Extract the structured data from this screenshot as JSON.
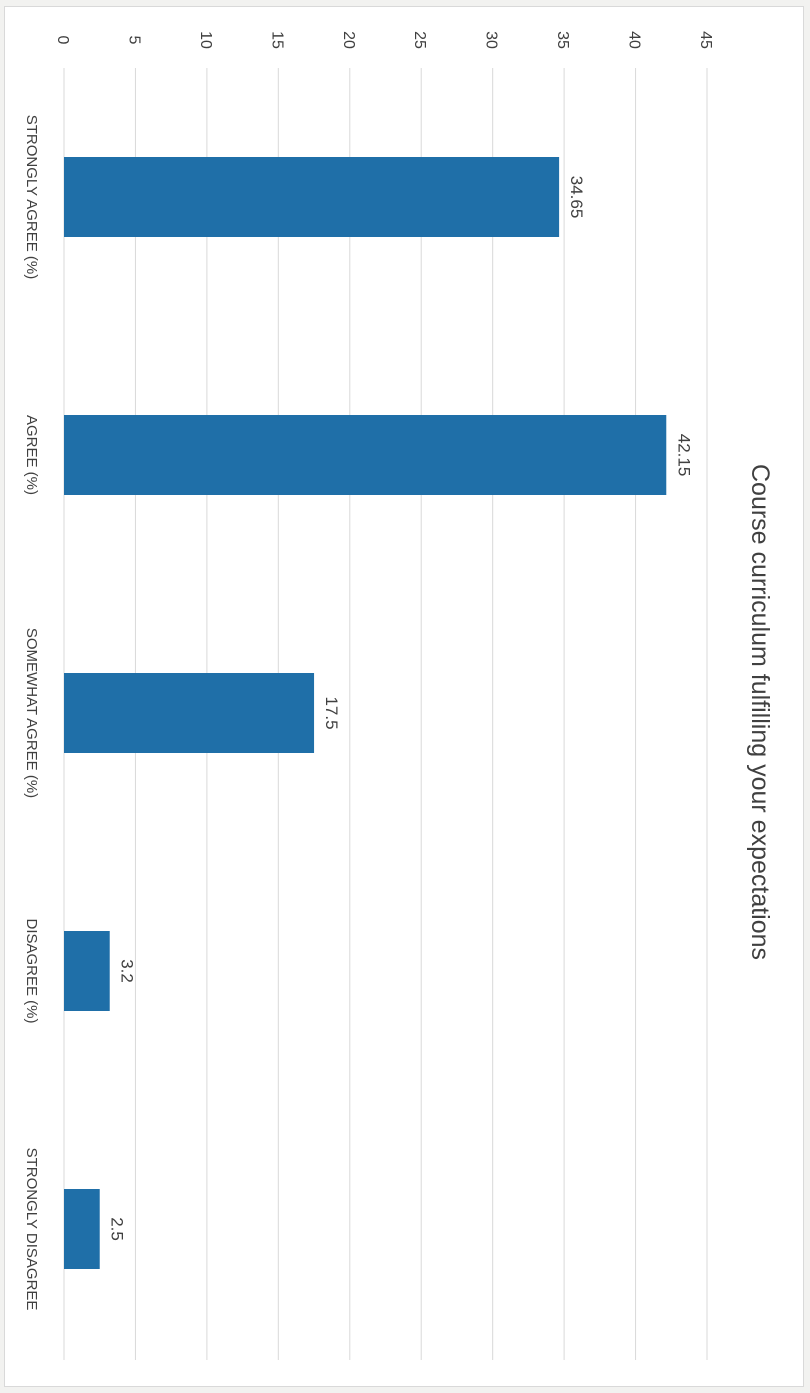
{
  "chart_data": {
    "type": "bar",
    "title": "Course curriculum fulfilling your expectations",
    "categories": [
      "STRONGLY AGREE (%)",
      "AGREE (%)",
      "SOMEWHAT AGREE (%)",
      "DISAGREE (%)",
      "STRONGLY DISAGREE"
    ],
    "values": [
      34.65,
      42.15,
      17.5,
      3.2,
      2.5
    ],
    "value_labels": [
      "34.65",
      "42.15",
      "17.5",
      "3.2",
      "2.5"
    ],
    "yticks": [
      0,
      5,
      10,
      15,
      20,
      25,
      30,
      35,
      40,
      45
    ],
    "ylim": [
      0,
      45
    ],
    "xlabel": "",
    "ylabel": "",
    "grid": true,
    "orientation": "rotated 90 degrees clockwise",
    "colors": {
      "bar": "#1f6fa8",
      "grid": "#d9d9d9",
      "text": "#404040"
    }
  }
}
